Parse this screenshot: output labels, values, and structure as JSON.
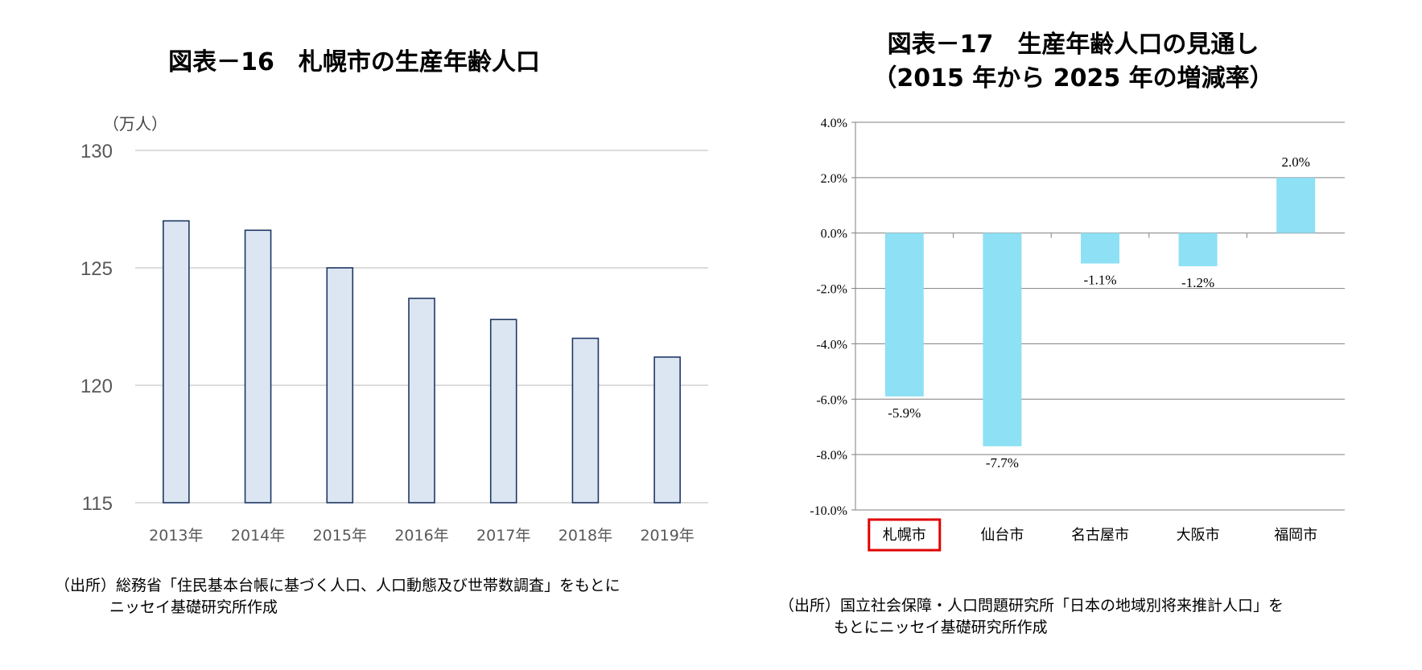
{
  "left": {
    "title": "図表－16　札幌市の生産年齢人口",
    "unit": "（万人）",
    "source_line1": "（出所）総務省「住民基本台帳に基づく人口、人口動態及び世帯数調査」をもとに",
    "source_line2": "ニッセイ基礎研究所作成"
  },
  "right": {
    "title_line1": "図表－17　生産年齢人口の見通し",
    "title_line2": "（2015 年から 2025 年の増減率）",
    "source_line1": "（出所）国立社会保障・人口問題研究所「日本の地域別将来推計人口」を",
    "source_line2": "もとにニッセイ基礎研究所作成"
  },
  "colors": {
    "left_bar_fill": "#dce6f2",
    "left_bar_stroke": "#1f3864",
    "right_bar_fill": "#8ee0f4",
    "highlight_box": "#e00000",
    "gridline": "#c8c8c8"
  },
  "chart_data": [
    {
      "type": "bar",
      "title": "図表－16　札幌市の生産年齢人口",
      "ylabel": "（万人）",
      "categories": [
        "2013年",
        "2014年",
        "2015年",
        "2016年",
        "2017年",
        "2018年",
        "2019年"
      ],
      "values": [
        127.0,
        126.6,
        125.0,
        123.7,
        122.8,
        122.0,
        121.2
      ],
      "ylim": [
        115,
        130
      ],
      "yticks": [
        115,
        120,
        125,
        130
      ],
      "ytick_labels": [
        "115",
        "120",
        "125",
        "130"
      ],
      "grid": true,
      "legend": "none"
    },
    {
      "type": "bar",
      "title": "図表－17　生産年齢人口の見通し（2015 年から 2025 年の増減率）",
      "categories": [
        "札幌市",
        "仙台市",
        "名古屋市",
        "大阪市",
        "福岡市"
      ],
      "values": [
        -5.9,
        -7.7,
        -1.1,
        -1.2,
        2.0
      ],
      "data_labels": [
        "-5.9%",
        "-7.7%",
        "-1.1%",
        "-1.2%",
        "2.0%"
      ],
      "ylim": [
        -10,
        4
      ],
      "yticks": [
        -10,
        -8,
        -6,
        -4,
        -2,
        0,
        2,
        4
      ],
      "ytick_labels": [
        "-10.0%",
        "-8.0%",
        "-6.0%",
        "-4.0%",
        "-2.0%",
        "0.0%",
        "2.0%",
        "4.0%"
      ],
      "highlighted_category": "札幌市",
      "grid": true,
      "legend": "none"
    }
  ]
}
